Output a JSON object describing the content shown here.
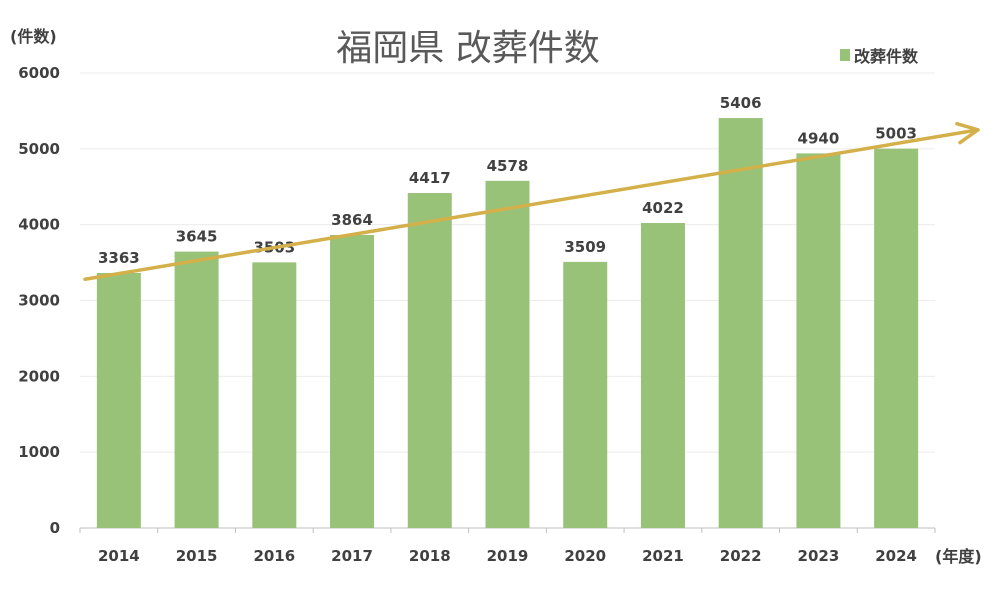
{
  "chart_data": {
    "type": "bar",
    "title": "福岡県 改葬件数",
    "ylabel": "(件数)",
    "xlabel": "(年度)",
    "categories": [
      "2014",
      "2015",
      "2016",
      "2017",
      "2018",
      "2019",
      "2020",
      "2021",
      "2022",
      "2023",
      "2024"
    ],
    "series": [
      {
        "name": "改葬件数",
        "values": [
          3363,
          3645,
          3503,
          3864,
          4417,
          4578,
          3509,
          4022,
          5406,
          4940,
          5003
        ],
        "color": "#97c278"
      }
    ],
    "ylim": [
      0,
      6000
    ],
    "yticks": [
      "0",
      "1000",
      "2000",
      "3000",
      "4000",
      "5000",
      "6000"
    ],
    "grid": true,
    "legend": "top-right",
    "data_labels": true,
    "trend_arrow": {
      "color": "#d4b04a",
      "from_value": 3280,
      "to_value": 5250
    }
  }
}
